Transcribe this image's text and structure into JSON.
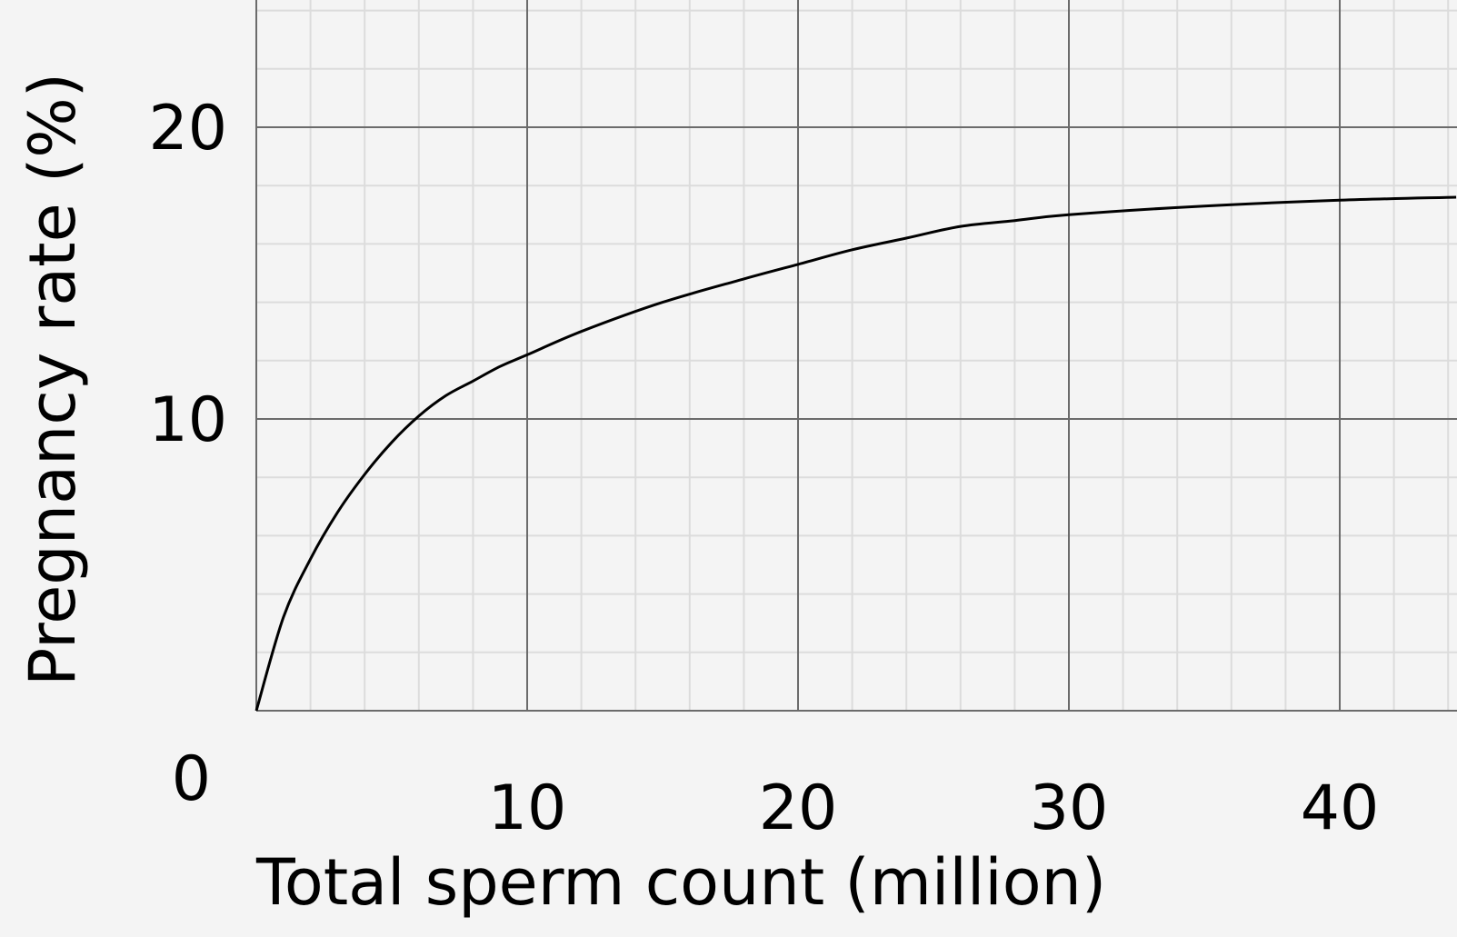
{
  "chart_data": {
    "type": "line",
    "title": "",
    "xlabel": "Total sperm count (million)",
    "ylabel": "Pregnancy rate (%)",
    "xlim": [
      0,
      44.3
    ],
    "ylim": [
      0,
      20
    ],
    "x_ticks": [
      "10",
      "20",
      "30",
      "40"
    ],
    "y_ticks": [
      "0",
      "10",
      "20"
    ],
    "grid": true,
    "minor_grid_step_x": 2,
    "minor_grid_step_y": 2,
    "series": [
      {
        "x": [
          0,
          1,
          2,
          3,
          4,
          5,
          6,
          7,
          8,
          9,
          10,
          12,
          15,
          18,
          20,
          22,
          24,
          26,
          28,
          30,
          35,
          40,
          44.3
        ],
        "y": [
          0,
          3.2,
          5.2,
          6.8,
          8.1,
          9.2,
          10.1,
          10.8,
          11.3,
          11.8,
          12.2,
          13.0,
          14.0,
          14.8,
          15.3,
          15.8,
          16.2,
          16.6,
          16.8,
          17.0,
          17.3,
          17.5,
          17.6
        ]
      }
    ],
    "colors": {
      "background": "#f4f4f4",
      "major_grid": "#6b6b6b",
      "minor_grid": "#dcdcdc",
      "line": "#000000"
    }
  }
}
